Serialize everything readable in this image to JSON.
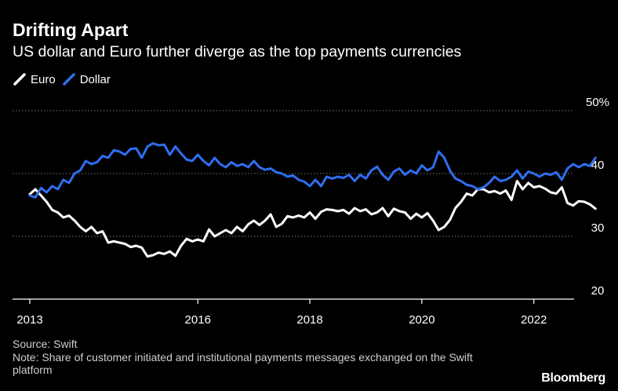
{
  "title": "Drifting Apart",
  "subtitle": "US dollar and Euro further diverge as the top payments currencies",
  "source": "Source: Swift",
  "note": "Note: Share of customer initiated and institutional payments messages exchanged on the Swift platform",
  "logo": "Bloomberg",
  "colors": {
    "euro": "#ffffff",
    "dollar": "#2f6ef0",
    "grid": "#777777",
    "axis": "#ffffff",
    "text": "#ffffff"
  },
  "chart_data": {
    "type": "line",
    "title": "Drifting Apart",
    "subtitle": "US dollar and Euro further diverge as the top payments currencies",
    "xlabel": "",
    "ylabel": "",
    "xlim": [
      2013.0,
      2022.9
    ],
    "ylim": [
      20,
      50
    ],
    "y_ticks": [
      20,
      30,
      40,
      50
    ],
    "y_tick_labels": [
      "20",
      "30",
      "40",
      "50%"
    ],
    "x_ticks": [
      2013,
      2016,
      2018,
      2020,
      2022
    ],
    "x_tick_labels": [
      "2013",
      "2016",
      "2018",
      "2020",
      "2022"
    ],
    "grid": "horizontal dotted",
    "legend": "top-left",
    "series": [
      {
        "name": "Euro",
        "color": "#ffffff",
        "points": [
          [
            2013.0,
            36.7
          ],
          [
            2013.1,
            37.5
          ],
          [
            2013.2,
            36.5
          ],
          [
            2013.3,
            35.5
          ],
          [
            2013.4,
            34.2
          ],
          [
            2013.5,
            33.8
          ],
          [
            2013.6,
            33.0
          ],
          [
            2013.7,
            33.3
          ],
          [
            2013.8,
            32.5
          ],
          [
            2013.9,
            31.5
          ],
          [
            2014.0,
            30.8
          ],
          [
            2014.1,
            31.5
          ],
          [
            2014.2,
            30.5
          ],
          [
            2014.3,
            30.8
          ],
          [
            2014.4,
            29.0
          ],
          [
            2014.5,
            29.2
          ],
          [
            2014.6,
            29.0
          ],
          [
            2014.7,
            28.8
          ],
          [
            2014.8,
            28.3
          ],
          [
            2014.9,
            28.5
          ],
          [
            2015.0,
            28.2
          ],
          [
            2015.1,
            26.8
          ],
          [
            2015.2,
            27.0
          ],
          [
            2015.3,
            27.4
          ],
          [
            2015.4,
            27.2
          ],
          [
            2015.5,
            27.6
          ],
          [
            2015.6,
            26.9
          ],
          [
            2015.7,
            28.5
          ],
          [
            2015.8,
            29.6
          ],
          [
            2015.9,
            29.2
          ],
          [
            2016.0,
            29.5
          ],
          [
            2016.1,
            29.2
          ],
          [
            2016.2,
            31.1
          ],
          [
            2016.3,
            30.0
          ],
          [
            2016.4,
            30.5
          ],
          [
            2016.5,
            31.0
          ],
          [
            2016.6,
            30.5
          ],
          [
            2016.7,
            31.5
          ],
          [
            2016.8,
            30.8
          ],
          [
            2016.9,
            31.9
          ],
          [
            2017.0,
            32.5
          ],
          [
            2017.1,
            31.8
          ],
          [
            2017.2,
            32.5
          ],
          [
            2017.3,
            33.5
          ],
          [
            2017.4,
            31.5
          ],
          [
            2017.5,
            32.0
          ],
          [
            2017.6,
            33.2
          ],
          [
            2017.7,
            33.0
          ],
          [
            2017.8,
            33.3
          ],
          [
            2017.9,
            33.0
          ],
          [
            2018.0,
            33.8
          ],
          [
            2018.1,
            32.8
          ],
          [
            2018.2,
            33.9
          ],
          [
            2018.3,
            34.3
          ],
          [
            2018.4,
            34.2
          ],
          [
            2018.5,
            34.0
          ],
          [
            2018.6,
            34.2
          ],
          [
            2018.7,
            33.6
          ],
          [
            2018.8,
            34.5
          ],
          [
            2018.9,
            34.0
          ],
          [
            2019.0,
            34.3
          ],
          [
            2019.1,
            33.5
          ],
          [
            2019.2,
            33.8
          ],
          [
            2019.3,
            34.5
          ],
          [
            2019.4,
            33.2
          ],
          [
            2019.5,
            34.4
          ],
          [
            2019.6,
            34.0
          ],
          [
            2019.7,
            33.8
          ],
          [
            2019.8,
            32.8
          ],
          [
            2019.9,
            33.6
          ],
          [
            2020.0,
            33.0
          ],
          [
            2020.1,
            33.7
          ],
          [
            2020.2,
            32.5
          ],
          [
            2020.3,
            31.0
          ],
          [
            2020.4,
            31.5
          ],
          [
            2020.5,
            32.6
          ],
          [
            2020.6,
            34.5
          ],
          [
            2020.7,
            35.5
          ],
          [
            2020.8,
            36.8
          ],
          [
            2020.9,
            36.5
          ],
          [
            2021.0,
            37.5
          ],
          [
            2021.1,
            37.5
          ],
          [
            2021.2,
            37.0
          ],
          [
            2021.3,
            37.2
          ],
          [
            2021.4,
            36.8
          ],
          [
            2021.5,
            37.3
          ],
          [
            2021.6,
            35.8
          ],
          [
            2021.7,
            38.8
          ],
          [
            2021.8,
            37.5
          ],
          [
            2021.9,
            38.5
          ],
          [
            2022.0,
            37.8
          ],
          [
            2022.1,
            38.0
          ],
          [
            2022.2,
            37.6
          ],
          [
            2022.3,
            37.0
          ],
          [
            2022.4,
            36.8
          ],
          [
            2022.5,
            37.8
          ],
          [
            2022.6,
            35.3
          ],
          [
            2022.7,
            34.9
          ],
          [
            2022.8,
            35.6
          ],
          [
            2022.9,
            35.5
          ],
          [
            2023.0,
            35.1
          ],
          [
            2023.1,
            34.4
          ]
        ]
      },
      {
        "name": "Dollar",
        "color": "#2f6ef0",
        "points": [
          [
            2013.0,
            36.5
          ],
          [
            2013.1,
            36.2
          ],
          [
            2013.2,
            37.7
          ],
          [
            2013.3,
            37.0
          ],
          [
            2013.4,
            38.0
          ],
          [
            2013.5,
            37.5
          ],
          [
            2013.6,
            39.0
          ],
          [
            2013.7,
            38.5
          ],
          [
            2013.8,
            40.0
          ],
          [
            2013.9,
            40.5
          ],
          [
            2014.0,
            42.0
          ],
          [
            2014.1,
            41.5
          ],
          [
            2014.2,
            41.8
          ],
          [
            2014.3,
            42.8
          ],
          [
            2014.4,
            42.5
          ],
          [
            2014.5,
            43.7
          ],
          [
            2014.6,
            43.5
          ],
          [
            2014.7,
            43.0
          ],
          [
            2014.8,
            43.9
          ],
          [
            2014.9,
            44.0
          ],
          [
            2015.0,
            42.5
          ],
          [
            2015.1,
            44.3
          ],
          [
            2015.2,
            44.8
          ],
          [
            2015.3,
            44.5
          ],
          [
            2015.4,
            44.6
          ],
          [
            2015.5,
            43.0
          ],
          [
            2015.6,
            44.3
          ],
          [
            2015.7,
            43.2
          ],
          [
            2015.8,
            42.2
          ],
          [
            2015.9,
            42.0
          ],
          [
            2016.0,
            43.0
          ],
          [
            2016.1,
            42.0
          ],
          [
            2016.2,
            41.3
          ],
          [
            2016.3,
            42.5
          ],
          [
            2016.4,
            41.5
          ],
          [
            2016.5,
            41.0
          ],
          [
            2016.6,
            41.8
          ],
          [
            2016.7,
            41.2
          ],
          [
            2016.8,
            41.5
          ],
          [
            2016.9,
            41.0
          ],
          [
            2017.0,
            42.0
          ],
          [
            2017.1,
            41.0
          ],
          [
            2017.2,
            40.6
          ],
          [
            2017.3,
            40.8
          ],
          [
            2017.4,
            40.2
          ],
          [
            2017.5,
            40.0
          ],
          [
            2017.6,
            39.5
          ],
          [
            2017.7,
            39.7
          ],
          [
            2017.8,
            39.0
          ],
          [
            2017.9,
            38.7
          ],
          [
            2018.0,
            38.0
          ],
          [
            2018.1,
            39.0
          ],
          [
            2018.2,
            38.0
          ],
          [
            2018.3,
            39.5
          ],
          [
            2018.4,
            39.2
          ],
          [
            2018.5,
            39.5
          ],
          [
            2018.6,
            39.3
          ],
          [
            2018.7,
            39.8
          ],
          [
            2018.8,
            38.8
          ],
          [
            2018.9,
            39.8
          ],
          [
            2019.0,
            39.2
          ],
          [
            2019.1,
            40.5
          ],
          [
            2019.2,
            41.1
          ],
          [
            2019.3,
            39.8
          ],
          [
            2019.4,
            39.0
          ],
          [
            2019.5,
            40.3
          ],
          [
            2019.6,
            40.8
          ],
          [
            2019.7,
            39.8
          ],
          [
            2019.8,
            40.5
          ],
          [
            2019.9,
            40.0
          ],
          [
            2020.0,
            41.3
          ],
          [
            2020.1,
            40.5
          ],
          [
            2020.2,
            41.0
          ],
          [
            2020.3,
            43.5
          ],
          [
            2020.4,
            42.5
          ],
          [
            2020.5,
            40.5
          ],
          [
            2020.6,
            39.2
          ],
          [
            2020.7,
            38.8
          ],
          [
            2020.8,
            38.2
          ],
          [
            2020.9,
            38.0
          ],
          [
            2021.0,
            37.5
          ],
          [
            2021.1,
            37.8
          ],
          [
            2021.2,
            38.5
          ],
          [
            2021.3,
            39.5
          ],
          [
            2021.4,
            38.8
          ],
          [
            2021.5,
            39.0
          ],
          [
            2021.6,
            39.5
          ],
          [
            2021.7,
            40.5
          ],
          [
            2021.8,
            39.2
          ],
          [
            2021.9,
            40.3
          ],
          [
            2022.0,
            40.0
          ],
          [
            2022.1,
            39.5
          ],
          [
            2022.2,
            40.0
          ],
          [
            2022.3,
            39.8
          ],
          [
            2022.4,
            40.2
          ],
          [
            2022.5,
            39.0
          ],
          [
            2022.6,
            40.8
          ],
          [
            2022.7,
            41.5
          ],
          [
            2022.8,
            41.0
          ],
          [
            2022.9,
            41.5
          ],
          [
            2023.0,
            41.2
          ],
          [
            2023.1,
            42.5
          ]
        ]
      }
    ]
  }
}
